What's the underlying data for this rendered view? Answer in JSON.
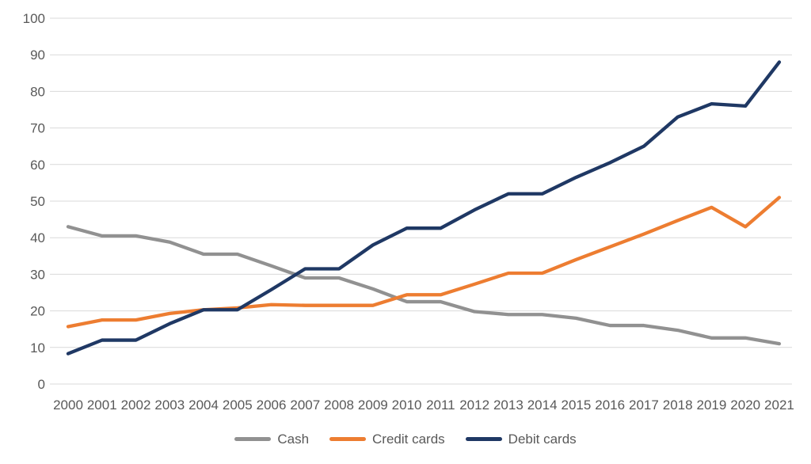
{
  "chart_data": {
    "type": "line",
    "categories": [
      "2000",
      "2001",
      "2002",
      "2003",
      "2004",
      "2005",
      "2006",
      "2007",
      "2008",
      "2009",
      "2010",
      "2011",
      "2012",
      "2013",
      "2014",
      "2015",
      "2016",
      "2017",
      "2018",
      "2019",
      "2020",
      "2021"
    ],
    "series": [
      {
        "name": "Cash",
        "color": "#919191",
        "values": [
          43,
          40.5,
          40.5,
          38.8,
          35.5,
          35.5,
          32.3,
          29,
          29,
          26,
          22.5,
          22.5,
          19.8,
          19,
          19,
          18,
          16,
          16,
          14.7,
          12.6,
          12.6,
          11
        ]
      },
      {
        "name": "Credit cards",
        "color": "#ED7D31",
        "values": [
          15.7,
          17.5,
          17.5,
          19.3,
          20.3,
          20.8,
          21.7,
          21.5,
          21.5,
          21.5,
          24.4,
          24.4,
          27.3,
          30.3,
          30.3,
          34,
          37.5,
          41,
          44.7,
          48.3,
          43,
          51
        ]
      },
      {
        "name": "Debit cards",
        "color": "#1F3864",
        "values": [
          8.3,
          12,
          12,
          16.5,
          20.3,
          20.3,
          25.8,
          31.5,
          31.5,
          38,
          42.6,
          42.6,
          47.6,
          52,
          52,
          56.5,
          60.5,
          65,
          73,
          76.6,
          76,
          88
        ]
      }
    ],
    "title": "",
    "xlabel": "",
    "ylabel": "",
    "ylim": [
      0,
      100
    ],
    "yticks": [
      0,
      10,
      20,
      30,
      40,
      50,
      60,
      70,
      80,
      90,
      100
    ],
    "grid": "horizontal",
    "legend_position": "bottom",
    "colors": {
      "gridline": "#D9D9D9",
      "tick_text": "#595959",
      "background": "#FFFFFF"
    }
  }
}
